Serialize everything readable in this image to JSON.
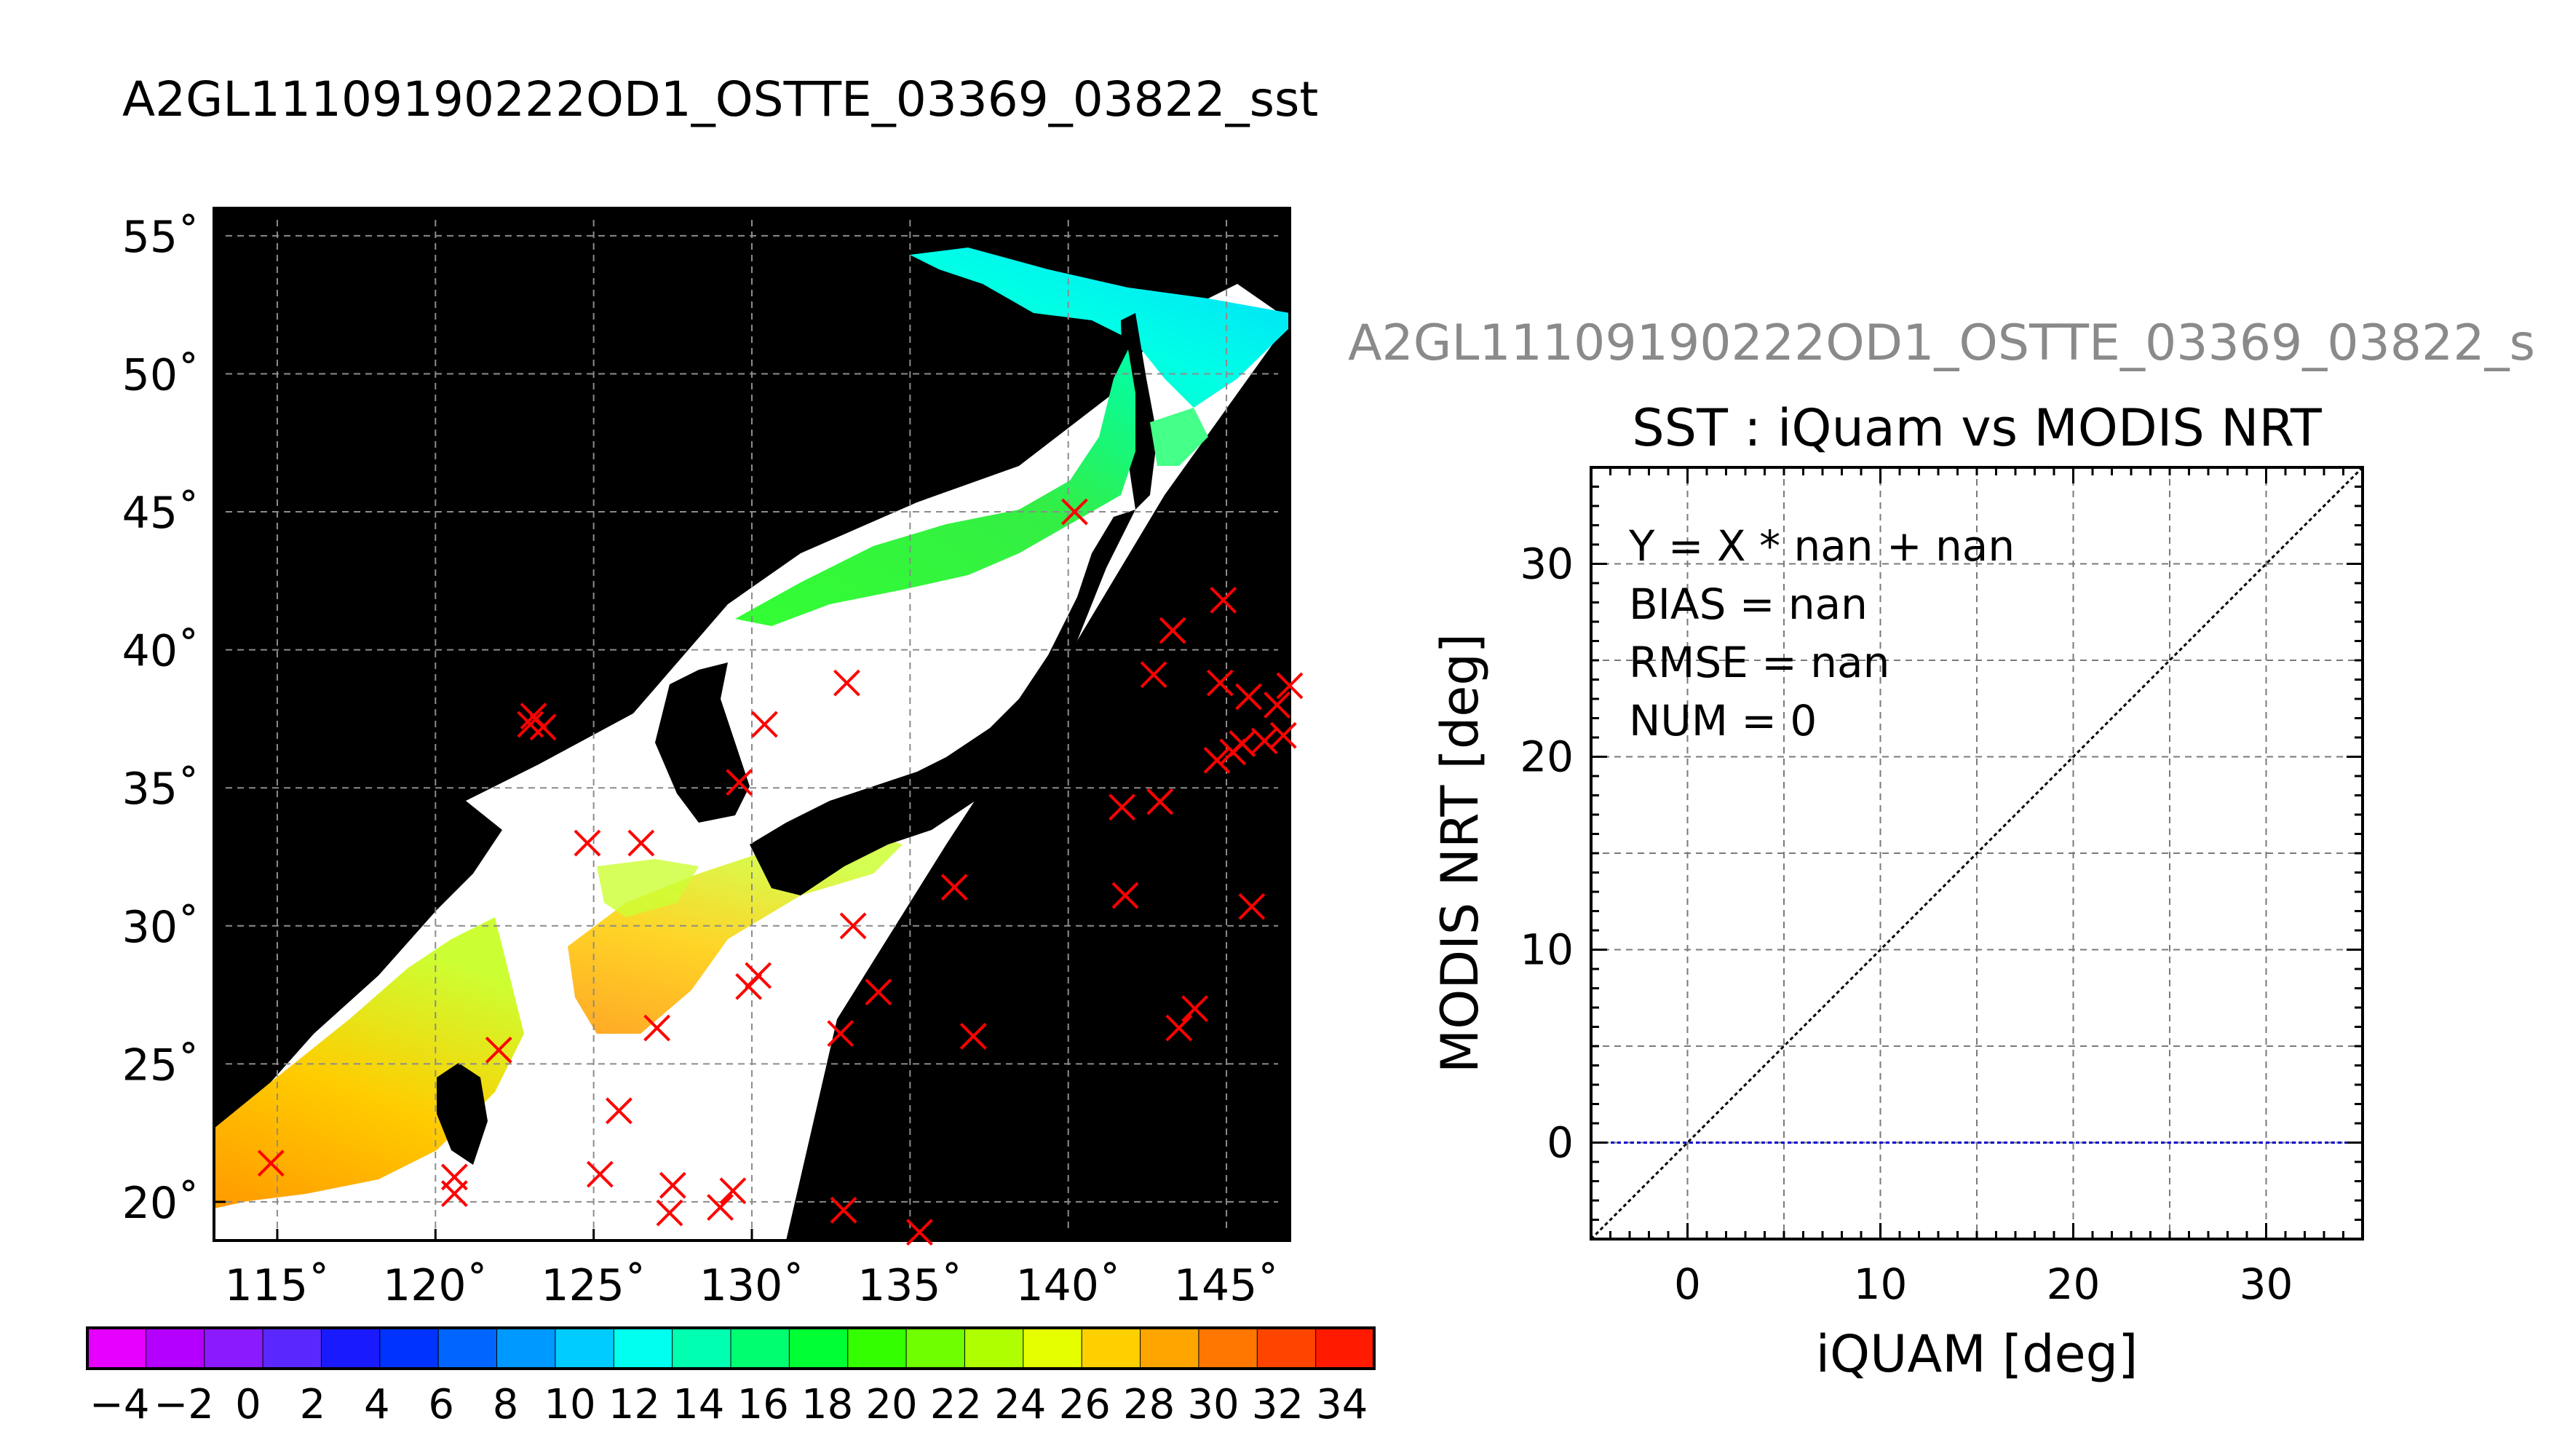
{
  "main_title": "A2GL11109190222OD1_OSTTE_03369_03822_sst",
  "right_title": "A2GL11109190222OD1_OSTTE_03369_03822_s",
  "chart_data": [
    {
      "type": "scatter",
      "subtype": "map",
      "xlim": [
        113,
        147
      ],
      "ylim": [
        18.6,
        56
      ],
      "x_ticks": [
        115,
        120,
        125,
        130,
        135,
        140,
        145
      ],
      "y_ticks": [
        20,
        25,
        30,
        35,
        40,
        45,
        50,
        55
      ],
      "x_tick_labels": [
        "115˚",
        "120˚",
        "125˚",
        "130˚",
        "135˚",
        "140˚",
        "145˚"
      ],
      "y_tick_labels": [
        "20˚",
        "25˚",
        "30˚",
        "35˚",
        "40˚",
        "45˚",
        "50˚",
        "55˚"
      ],
      "grid": true,
      "marker": "x",
      "marker_color": "#ff0000",
      "points": [
        [
          140.2,
          45.0
        ],
        [
          143.3,
          40.7
        ],
        [
          144.9,
          41.8
        ],
        [
          142.7,
          39.1
        ],
        [
          144.8,
          38.8
        ],
        [
          145.7,
          38.3
        ],
        [
          146.6,
          38.0
        ],
        [
          147.0,
          38.7
        ],
        [
          146.8,
          36.9
        ],
        [
          145.5,
          36.6
        ],
        [
          146.2,
          36.7
        ],
        [
          144.7,
          36.0
        ],
        [
          145.2,
          36.3
        ],
        [
          141.7,
          34.3
        ],
        [
          142.9,
          34.5
        ],
        [
          141.8,
          31.1
        ],
        [
          145.8,
          30.7
        ],
        [
          144.0,
          27.0
        ],
        [
          143.5,
          26.3
        ],
        [
          137.0,
          26.0
        ],
        [
          136.4,
          31.4
        ],
        [
          133.0,
          38.8
        ],
        [
          130.4,
          37.3
        ],
        [
          129.6,
          35.2
        ],
        [
          123.1,
          37.6
        ],
        [
          123.4,
          37.2
        ],
        [
          123.0,
          37.3
        ],
        [
          124.8,
          33.0
        ],
        [
          126.5,
          33.0
        ],
        [
          133.2,
          30.0
        ],
        [
          134.0,
          27.6
        ],
        [
          132.8,
          26.1
        ],
        [
          129.9,
          27.8
        ],
        [
          130.2,
          28.2
        ],
        [
          127.0,
          26.3
        ],
        [
          122.0,
          25.5
        ],
        [
          125.8,
          23.3
        ],
        [
          114.8,
          21.4
        ],
        [
          120.6,
          20.9
        ],
        [
          120.6,
          20.3
        ],
        [
          125.2,
          21.0
        ],
        [
          127.5,
          20.6
        ],
        [
          127.4,
          19.6
        ],
        [
          129.4,
          20.4
        ],
        [
          129.0,
          19.8
        ],
        [
          132.9,
          19.7
        ],
        [
          135.3,
          18.9
        ]
      ]
    },
    {
      "type": "scatter",
      "title": "SST : iQuam vs MODIS NRT",
      "xlabel": "iQUAM [deg]",
      "ylabel": "MODIS NRT [deg]",
      "xlim": [
        -5,
        35
      ],
      "ylim": [
        -5,
        35
      ],
      "x_ticks": [
        0,
        10,
        20,
        30
      ],
      "y_ticks": [
        0,
        10,
        20,
        30
      ],
      "grid": true,
      "annotations": [
        "Y = X * nan + nan",
        "BIAS = nan",
        "RMSE = nan",
        "NUM = 0"
      ],
      "reference_lines": [
        {
          "kind": "identity",
          "color": "#000000",
          "style": "dotted"
        },
        {
          "kind": "y=0",
          "color": "#0000cc",
          "style": "dotted"
        }
      ],
      "points": []
    },
    {
      "type": "heatmap",
      "subtype": "colorbar",
      "vmin": -5,
      "vmax": 35,
      "tick_labels": [
        "−4",
        "−2",
        "0",
        "2",
        "4",
        "6",
        "8",
        "10",
        "12",
        "14",
        "16",
        "18",
        "20",
        "22",
        "24",
        "26",
        "28",
        "30",
        "32",
        "34"
      ],
      "colors": [
        "#e600ff",
        "#b300ff",
        "#8c1aff",
        "#5a28ff",
        "#1a1aff",
        "#0033ff",
        "#0066ff",
        "#0099ff",
        "#00ccff",
        "#00ffee",
        "#00ffb0",
        "#00ff70",
        "#00ff33",
        "#33ff00",
        "#70ff00",
        "#b0ff00",
        "#e6ff00",
        "#ffd000",
        "#ffa500",
        "#ff7700",
        "#ff4400",
        "#ff1a00"
      ]
    }
  ]
}
